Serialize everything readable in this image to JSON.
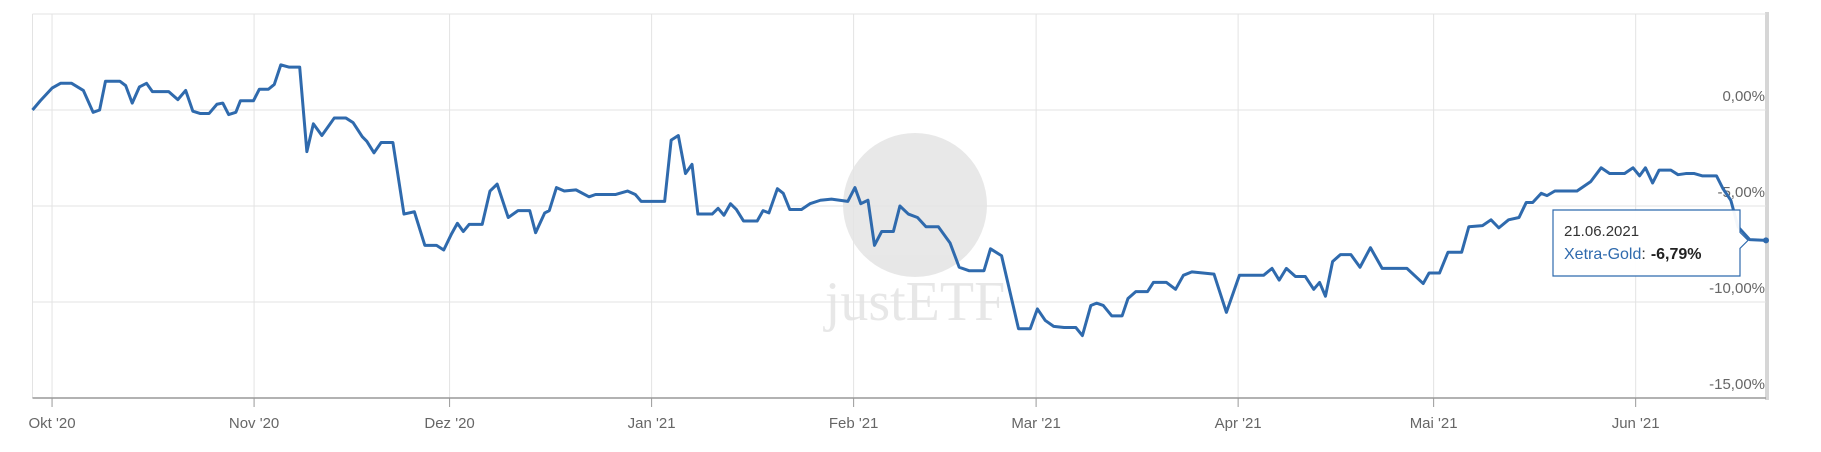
{
  "chart_data": {
    "type": "line",
    "color": "#2f6aad",
    "grid": true,
    "watermark": "justETF",
    "xlim": [
      -3,
      263
    ],
    "xticks": [
      {
        "value": 0,
        "label": "Okt '20"
      },
      {
        "value": 31,
        "label": "Nov '20"
      },
      {
        "value": 61,
        "label": "Dez '20"
      },
      {
        "value": 92,
        "label": "Jan '21"
      },
      {
        "value": 123,
        "label": "Feb '21"
      },
      {
        "value": 151,
        "label": "Mar '21"
      },
      {
        "value": 182,
        "label": "Apr '21"
      },
      {
        "value": 212,
        "label": "Mai '21"
      },
      {
        "value": 243,
        "label": "Jun '21"
      }
    ],
    "ylim": [
      -15,
      5
    ],
    "yticks": [
      {
        "value": -15,
        "label": "-15,00%"
      },
      {
        "value": -10,
        "label": "-10,00%"
      },
      {
        "value": -5,
        "label": "-5,00%"
      },
      {
        "value": 0,
        "label": "0,00%"
      }
    ],
    "x": [
      -3,
      -1.8,
      0,
      1.3,
      3,
      4.8,
      6.3,
      7.3,
      8.2,
      10.4,
      11.3,
      12.3,
      13.4,
      14.5,
      15.4,
      17.9,
      19.3,
      20.5,
      21.6,
      22.7,
      24.1,
      25.3,
      26.2,
      27.1,
      28.2,
      28.9,
      30.9,
      31.8,
      33.2,
      34.1,
      35.1,
      36.4,
      38,
      39.1,
      40.1,
      41.4,
      43.3,
      45.1,
      46.2,
      47.6,
      48.3,
      49.4,
      50.5,
      52.3,
      54,
      55.6,
      57.2,
      59,
      60.1,
      61.3,
      62.2,
      63.1,
      64,
      66,
      67.2,
      68.3,
      70,
      71.5,
      73.3,
      74.2,
      75.6,
      76.3,
      77.4,
      78.6,
      80.4,
      82.4,
      83.4,
      86.5,
      88.3,
      89.5,
      90.4,
      94,
      95,
      96.1,
      97.2,
      98.2,
      99.1,
      101.3,
      102.2,
      103.1,
      104.1,
      105,
      106.1,
      108.2,
      109.1,
      110,
      111.3,
      112.2,
      113.2,
      115,
      116.3,
      117.9,
      119.6,
      122.1,
      123.2,
      124.1,
      125.2,
      126.2,
      127.3,
      129.1,
      130.1,
      131.4,
      132.8,
      134.1,
      136,
      137.8,
      139.2,
      140.7,
      143,
      144,
      145.7,
      148.3,
      150.1,
      151.2,
      152.4,
      153.7,
      155.3,
      157.1,
      158.1,
      159.4,
      160.3,
      161.3,
      162.6,
      164.2,
      165.1,
      166.3,
      168.1,
      169,
      171,
      172.4,
      173.6,
      174.9,
      178.3,
      180.2,
      182.2,
      185.9,
      187.2,
      188.3,
      189.4,
      190.8,
      192.3,
      193.6,
      194.5,
      195.4,
      196.5,
      197.7,
      199.3,
      200.7,
      202.3,
      204.1,
      207.9,
      210.4,
      211.3,
      212.9,
      214.2,
      216.3,
      217.4,
      219.5,
      220.8,
      222,
      223.5,
      225.1,
      226.2,
      227.2,
      228.5,
      229.4,
      230.6,
      234,
      236.1,
      237.7,
      239,
      241.3,
      242.6,
      243.6,
      244.5,
      245.6,
      246.6,
      248.4,
      249.5,
      250.7,
      252,
      253.2,
      255.4,
      256.4,
      257.6,
      258.7,
      260.5,
      263
    ],
    "values": [
      0,
      0.48,
      1.14,
      1.39,
      1.39,
      1.02,
      -0.12,
      0,
      1.5,
      1.5,
      1.27,
      0.36,
      1.2,
      1.39,
      0.96,
      0.96,
      0.54,
      1.02,
      -0.06,
      -0.18,
      -0.18,
      0.3,
      0.36,
      -0.24,
      -0.12,
      0.48,
      0.48,
      1.08,
      1.08,
      1.33,
      2.35,
      2.23,
      2.23,
      -2.17,
      -0.72,
      -1.33,
      -0.42,
      -0.42,
      -0.66,
      -1.39,
      -1.63,
      -2.23,
      -1.69,
      -1.69,
      -5.42,
      -5.3,
      -7.05,
      -7.05,
      -7.29,
      -6.45,
      -5.9,
      -6.33,
      -5.96,
      -5.96,
      -4.22,
      -3.86,
      -5.6,
      -5.24,
      -5.24,
      -6.39,
      -5.36,
      -5.24,
      -4.04,
      -4.22,
      -4.16,
      -4.52,
      -4.4,
      -4.4,
      -4.22,
      -4.4,
      -4.76,
      -4.76,
      -1.57,
      -1.33,
      -3.31,
      -2.83,
      -5.42,
      -5.42,
      -5.12,
      -5.48,
      -4.88,
      -5.18,
      -5.78,
      -5.78,
      -5.24,
      -5.36,
      -4.1,
      -4.34,
      -5.18,
      -5.18,
      -4.88,
      -4.7,
      -4.64,
      -4.76,
      -4.04,
      -4.88,
      -4.7,
      -7.05,
      -6.33,
      -6.33,
      -5,
      -5.42,
      -5.6,
      -6.08,
      -6.08,
      -6.93,
      -8.19,
      -8.37,
      -8.37,
      -7.23,
      -7.59,
      -11.39,
      -11.39,
      -10.36,
      -10.96,
      -11.27,
      -11.33,
      -11.33,
      -11.75,
      -10.18,
      -10.06,
      -10.18,
      -10.72,
      -10.72,
      -9.82,
      -9.46,
      -9.46,
      -8.98,
      -8.98,
      -9.34,
      -8.61,
      -8.43,
      -8.55,
      -10.54,
      -8.61,
      -8.61,
      -8.25,
      -8.86,
      -8.25,
      -8.67,
      -8.67,
      -9.34,
      -8.98,
      -9.7,
      -7.89,
      -7.53,
      -7.53,
      -8.19,
      -7.17,
      -8.25,
      -8.25,
      -9.04,
      -8.49,
      -8.49,
      -7.41,
      -7.41,
      -6.08,
      -6.02,
      -5.72,
      -6.14,
      -5.72,
      -5.6,
      -4.82,
      -4.82,
      -4.34,
      -4.46,
      -4.22,
      -4.22,
      -3.73,
      -3.01,
      -3.31,
      -3.31,
      -3.01,
      -3.43,
      -3.01,
      -3.8,
      -3.13,
      -3.13,
      -3.37,
      -3.31,
      -3.31,
      -3.43,
      -3.43,
      -4.1,
      -4.7,
      -6.08,
      -6.75,
      -6.79
    ],
    "tooltip": {
      "date": "21.06.2021",
      "series": "Xetra-Gold",
      "separator": ":",
      "value_label": "-6,79%"
    }
  }
}
